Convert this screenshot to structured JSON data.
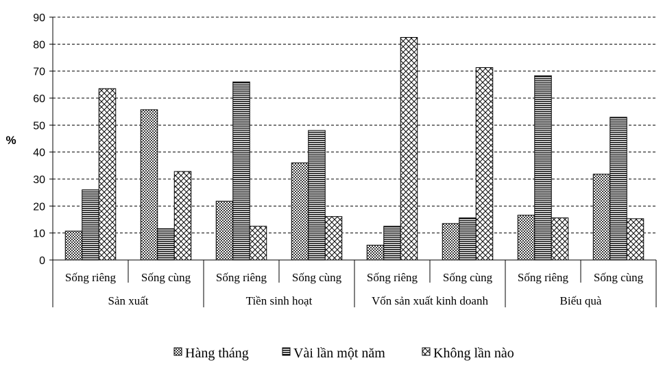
{
  "chart_data": {
    "type": "bar",
    "ylabel": "%",
    "ylim": [
      0,
      90
    ],
    "yticks": [
      0,
      10,
      20,
      30,
      40,
      50,
      60,
      70,
      80,
      90
    ],
    "grid": "horizontal dashed",
    "legend_position": "bottom",
    "groups": [
      {
        "label": "Sản xuất",
        "categories": [
          "Sống riêng",
          "Sống cùng"
        ]
      },
      {
        "label": "Tiền sinh hoạt",
        "categories": [
          "Sống riêng",
          "Sống cùng"
        ]
      },
      {
        "label": "Vốn sản xuất kinh doanh",
        "categories": [
          "Sống riêng",
          "Sống cùng"
        ]
      },
      {
        "label": "Biếu quà",
        "categories": [
          "Sống riêng",
          "Sống cùng"
        ]
      }
    ],
    "categories": [
      "Sống riêng",
      "Sống cùng",
      "Sống riêng",
      "Sống cùng",
      "Sống riêng",
      "Sống cùng",
      "Sống riêng",
      "Sống cùng"
    ],
    "series": [
      {
        "name": "Hàng tháng",
        "pattern": "dots",
        "values": [
          10.7,
          55.7,
          21.8,
          36,
          5.5,
          13.5,
          16.6,
          31.8
        ]
      },
      {
        "name": "Vài lần một năm",
        "pattern": "horizontal-lines",
        "values": [
          26,
          11.6,
          66,
          48,
          12.5,
          15.6,
          68.3,
          52.9
        ]
      },
      {
        "name": "Không lần nào",
        "pattern": "crosshatch",
        "values": [
          63.5,
          32.8,
          12.5,
          16.1,
          82.5,
          71.3,
          15.6,
          15.3
        ]
      }
    ]
  }
}
